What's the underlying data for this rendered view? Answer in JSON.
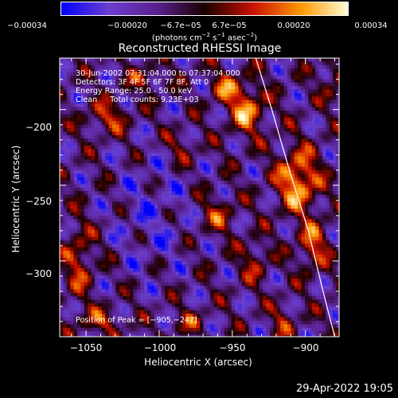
{
  "chart_data": {
    "type": "heatmap",
    "title": "Reconstructed RHESSI Image",
    "xlabel": "Heliocentric X (arcsec)",
    "ylabel": "Heliocentric Y (arcsec)",
    "xlim": [
      -1068,
      -877
    ],
    "ylim": [
      -350,
      -166
    ],
    "xticks": [
      "−1050",
      "−1000",
      "−950",
      "−900"
    ],
    "xtick_values": [
      -1050,
      -1000,
      -950,
      -900
    ],
    "yticks": [
      "−200",
      "−250",
      "−300"
    ],
    "ytick_values": [
      -200,
      -250,
      -300
    ],
    "colorbar": {
      "ticks": [
        "−0.00034",
        "−0.00020",
        "−6.7e−05",
        "6.7e−05",
        "0.00020",
        "0.00034"
      ],
      "tick_values": [
        -0.00034,
        -0.0002,
        -6.7e-05,
        6.7e-05,
        0.0002,
        0.00034
      ],
      "range": [
        -0.00034,
        0.00034
      ],
      "units_base": "(photons cm",
      "units_exp1": "−2",
      "units_mid1": " s",
      "units_exp2": "−1",
      "units_mid2": " asec",
      "units_exp3": "−2",
      "units_end": ")",
      "colormap": [
        "#0000ff",
        "#6a3fcf",
        "#5a2090",
        "#1a0000",
        "#c81000",
        "#ff9800",
        "#ffffd8"
      ]
    },
    "annotations": {
      "time_range": "30-Jun-2002 07:31:04.000 to 07:37:04.000",
      "detectors": "Detectors: 3F 4F 5F 6F 7F 8F, Att 0",
      "energy": "Energy Range: 25.0 - 50.0 keV",
      "algorithm": "Clean",
      "total_counts": "Total counts: 9.23E+03",
      "peak_position": "Position of Peak = [−905,−247]"
    },
    "peak": {
      "x": -905,
      "y": -247
    },
    "limb_curve": [
      [
        -934,
        -166
      ],
      [
        -923,
        -200
      ],
      [
        -911,
        -240
      ],
      [
        -898,
        -280
      ],
      [
        -888,
        -320
      ],
      [
        -880,
        -350
      ]
    ]
  },
  "footer": {
    "timestamp": "29-Apr-2022 19:05"
  }
}
